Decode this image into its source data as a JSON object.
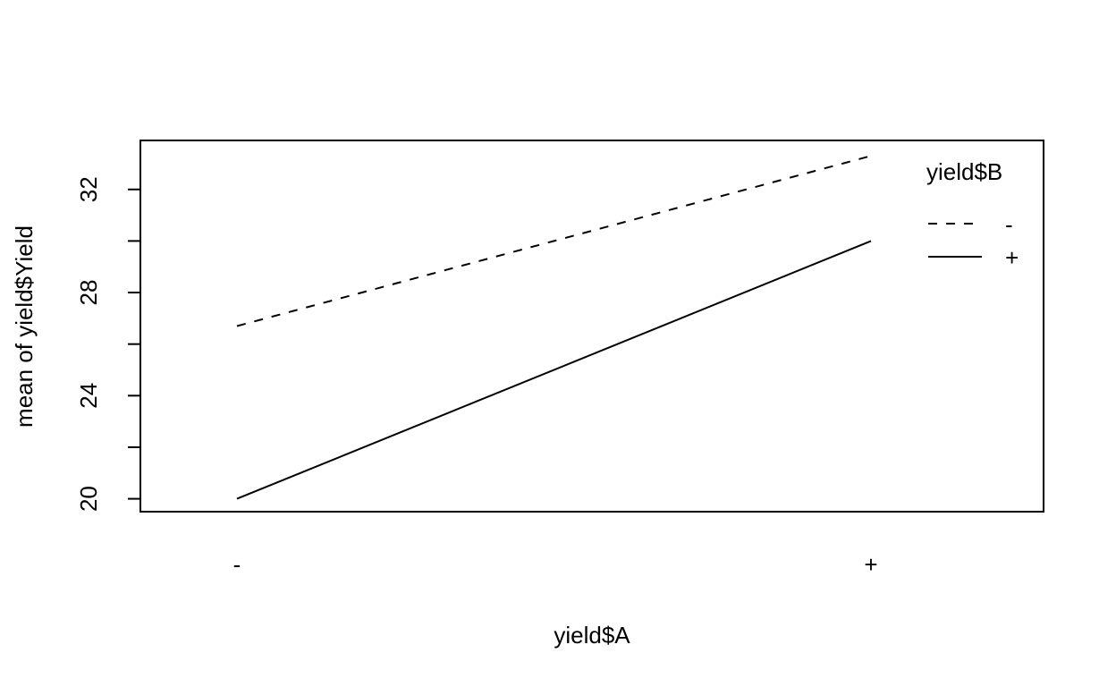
{
  "chart_data": {
    "type": "line",
    "title": "",
    "xlabel": "yield$A",
    "ylabel": "mean of  yield$Yield",
    "categories": [
      "-",
      "+"
    ],
    "ylim": [
      19.5,
      33.9
    ],
    "y_ticks": [
      20,
      22,
      24,
      26,
      28,
      30,
      32
    ],
    "y_tick_labels": [
      "20",
      "",
      "24",
      "",
      "28",
      "",
      "32"
    ],
    "legend": {
      "title": "yield$B",
      "position": "top-right"
    },
    "series": [
      {
        "name": "-",
        "line_style": "dashed",
        "values": [
          26.7,
          33.3
        ]
      },
      {
        "name": "+",
        "line_style": "solid",
        "values": [
          20.0,
          30.0
        ]
      }
    ],
    "grid": false
  },
  "colors": {
    "line": "#000000",
    "background": "#ffffff",
    "frame": "#000000"
  }
}
